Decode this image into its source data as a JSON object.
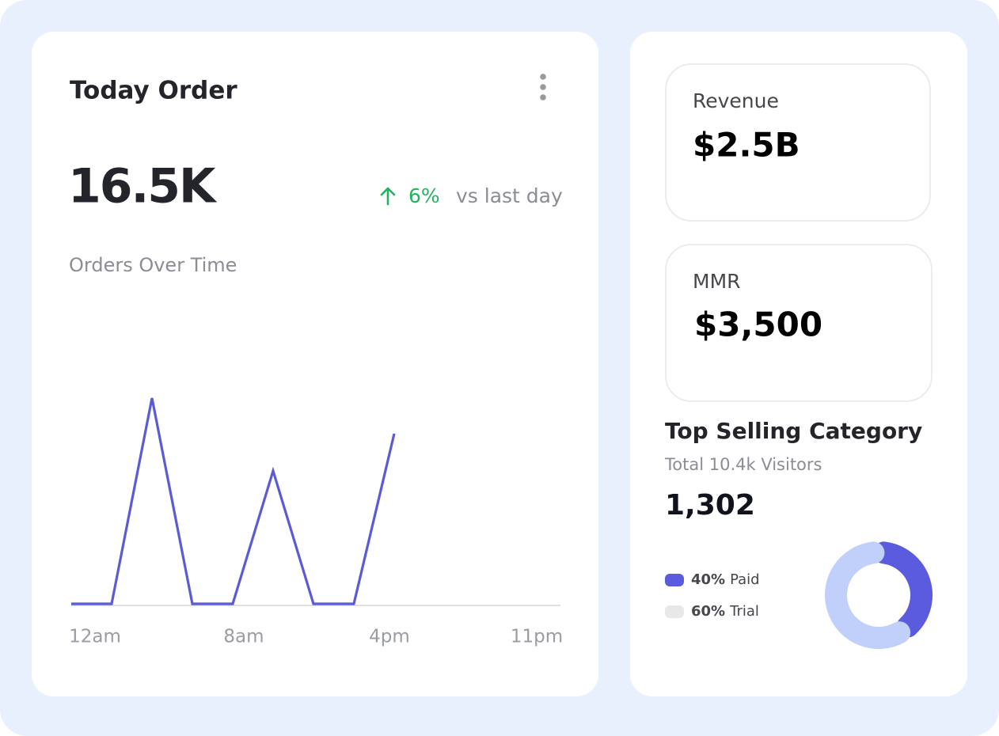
{
  "order_card": {
    "title": "Today Order",
    "value": "16.5K",
    "change": "6%",
    "change_label": "vs last day",
    "chart": {
      "type": "line",
      "title": "Orders Over Time",
      "categories": [
        "12am",
        "8am",
        "4pm",
        "11pm"
      ],
      "values": [
        0,
        0,
        260,
        0,
        0,
        168,
        0,
        0,
        215
      ],
      "ylim": [
        0,
        300
      ],
      "color": "#5b5bd6"
    }
  },
  "revenue": {
    "label": "Revenue",
    "value": "$2.5B"
  },
  "mmr": {
    "label": "MMR",
    "value": "$3,500"
  },
  "category": {
    "title": "Top Selling Category",
    "subtitle": "Total 10.4k Visitors",
    "value": "1,302",
    "chart": {
      "type": "donut",
      "series": [
        {
          "name": "Paid",
          "value": 40,
          "value_label": "40%",
          "color": "#5b5be0"
        },
        {
          "name": "Trial",
          "value": 60,
          "value_label": "60%",
          "color": "#c0d0fb",
          "legend_color": "#e8e8e8"
        }
      ]
    }
  }
}
